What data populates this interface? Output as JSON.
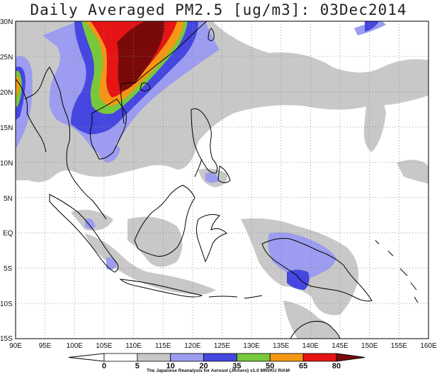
{
  "title": "Daily Averaged PM2.5 [ug/m3]: 03Dec2014",
  "credit": "The Japanese Reanalysis for Aerosol (JRAero) v1.0 MRI/KU RIAM",
  "lat_labels": [
    "30N",
    "25N",
    "20N",
    "15N",
    "10N",
    "5N",
    "EQ",
    "5S",
    "10S",
    "15S"
  ],
  "lon_labels": [
    "90E",
    "95E",
    "100E",
    "105E",
    "110E",
    "115E",
    "120E",
    "125E",
    "130E",
    "135E",
    "140E",
    "145E",
    "150E",
    "155E",
    "160E"
  ],
  "colorbar": {
    "ticks": [
      "0",
      "5",
      "10",
      "20",
      "35",
      "50",
      "65",
      "80"
    ],
    "colors": [
      "#ffffff",
      "#c8c8c8",
      "#9c9cf0",
      "#4646e0",
      "#78c83c",
      "#f59614",
      "#e61414",
      "#7a0a0a"
    ]
  },
  "map_extent": {
    "lon": [
      90,
      160
    ],
    "lat": [
      -15,
      30
    ]
  }
}
